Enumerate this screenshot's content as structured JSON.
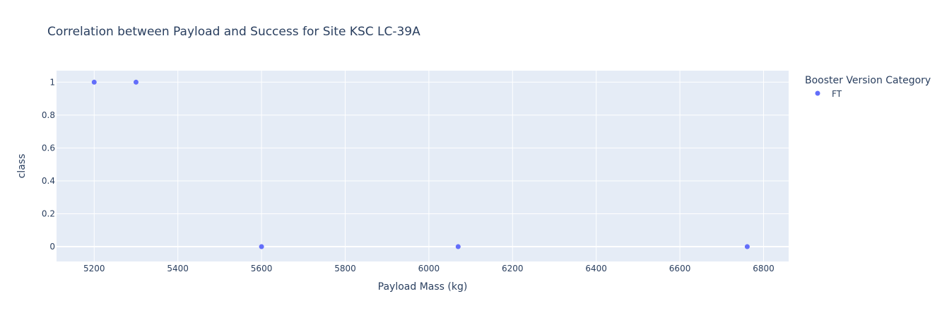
{
  "chart_data": {
    "type": "scatter",
    "title": "Correlation between Payload and Success for Site KSC LC-39A",
    "xlabel": "Payload Mass (kg)",
    "ylabel": "class",
    "xlim": [
      5110,
      6860
    ],
    "ylim": [
      -0.09,
      1.07
    ],
    "xticks": [
      5200,
      5400,
      5600,
      5800,
      6000,
      6200,
      6400,
      6600,
      6800
    ],
    "yticks": [
      0,
      0.2,
      0.4,
      0.6,
      0.8,
      1
    ],
    "grid": true,
    "legend": {
      "title": "Booster Version Category",
      "placement": "right",
      "entries": [
        {
          "label": "FT",
          "color": "#636efa"
        }
      ]
    },
    "series": [
      {
        "name": "FT",
        "color": "#636efa",
        "points": [
          {
            "x": 5200,
            "y": 1
          },
          {
            "x": 5300,
            "y": 1
          },
          {
            "x": 5600,
            "y": 0
          },
          {
            "x": 6070,
            "y": 0
          },
          {
            "x": 6761,
            "y": 0
          }
        ]
      }
    ]
  }
}
